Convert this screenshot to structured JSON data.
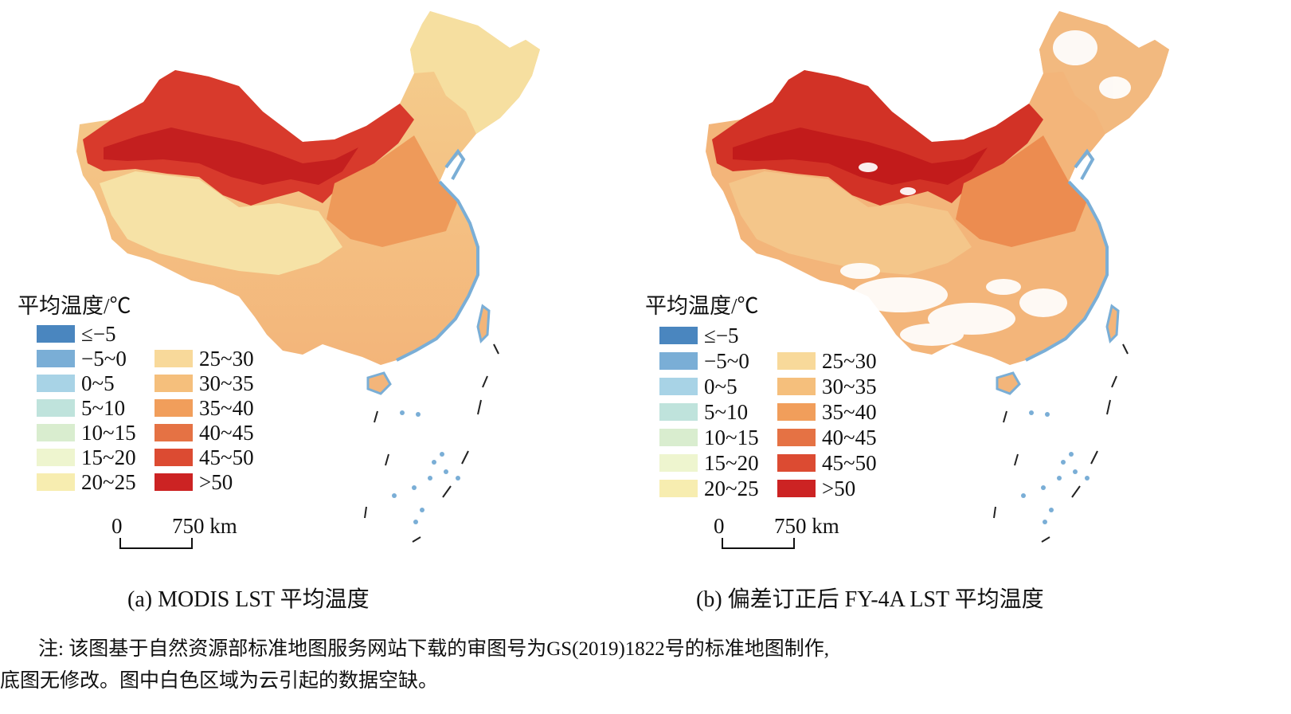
{
  "legend": {
    "title": "平均温度/℃",
    "classes": [
      {
        "label": "≤−5",
        "color": "#4a86bf"
      },
      {
        "label": "−5~0",
        "color": "#7aaed6"
      },
      {
        "label": "0~5",
        "color": "#a8d3e6"
      },
      {
        "label": "5~10",
        "color": "#bfe3dc"
      },
      {
        "label": "10~15",
        "color": "#d9edcf"
      },
      {
        "label": "15~20",
        "color": "#eef5cf"
      },
      {
        "label": "20~25",
        "color": "#f7edb0"
      },
      {
        "label": "25~30",
        "color": "#f8d99a"
      },
      {
        "label": "30~35",
        "color": "#f5bf7c"
      },
      {
        "label": "35~40",
        "color": "#f19e5b"
      },
      {
        "label": "40~45",
        "color": "#e57244"
      },
      {
        "label": "45~50",
        "color": "#dc4b32"
      },
      {
        "label": ">50",
        "color": "#cc2323"
      }
    ]
  },
  "scalebar": {
    "start": "0",
    "end": "750 km"
  },
  "panels": [
    {
      "id": "a",
      "caption": "(a) MODIS LST 平均温度"
    },
    {
      "id": "b",
      "caption": "(b) 偏差订正后 FY-4A LST 平均温度"
    }
  ],
  "note": {
    "line1": "注: 该图基于自然资源部标准地图服务网站下载的审图号为GS(2019)1822号的标准地图制作,",
    "line2": "底图无修改。图中白色区域为云引起的数据空缺。"
  },
  "colors": {
    "coast": "#7aaed6",
    "border": "#333333",
    "cloud_gap": "#ffffff"
  }
}
